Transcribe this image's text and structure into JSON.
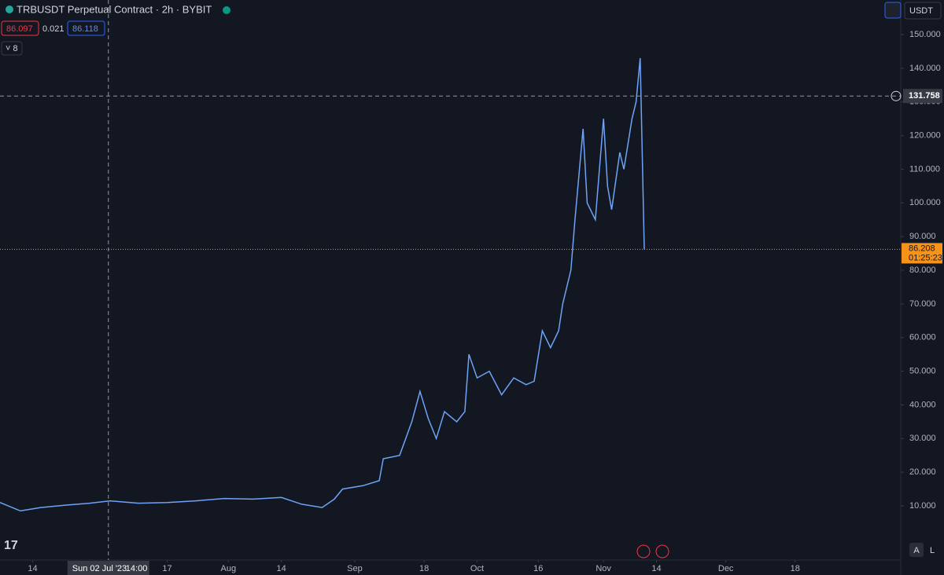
{
  "chart_data": {
    "type": "line",
    "title": "TRBUSDT Perpetual Contract · 2h · BYBIT",
    "ohlc": {
      "open": 86.097,
      "change": 0.021,
      "close": 86.118
    },
    "indicator_count": 8,
    "currency": "USDT",
    "logo": "17",
    "scale_buttons": [
      "A",
      "L"
    ],
    "x": [
      "2023-06-06",
      "2023-06-11",
      "2023-06-16",
      "2023-06-22",
      "2023-06-28",
      "2023-07-03",
      "2023-07-10",
      "2023-07-17",
      "2023-07-24",
      "2023-07-31",
      "2023-08-07",
      "2023-08-14",
      "2023-08-19",
      "2023-08-24",
      "2023-08-27",
      "2023-08-29",
      "2023-09-03",
      "2023-09-07",
      "2023-09-08",
      "2023-09-12",
      "2023-09-15",
      "2023-09-17",
      "2023-09-19",
      "2023-09-21",
      "2023-09-23",
      "2023-09-26",
      "2023-09-28",
      "2023-09-29",
      "2023-10-01",
      "2023-10-04",
      "2023-10-07",
      "2023-10-10",
      "2023-10-13",
      "2023-10-15",
      "2023-10-17",
      "2023-10-19",
      "2023-10-21",
      "2023-10-22",
      "2023-10-24",
      "2023-10-25",
      "2023-10-27",
      "2023-10-28",
      "2023-10-30",
      "2023-11-01",
      "2023-11-02",
      "2023-11-03",
      "2023-11-05",
      "2023-11-06",
      "2023-11-08",
      "2023-11-09",
      "2023-11-10",
      "2023-11-11"
    ],
    "series": [
      {
        "name": "TRBUSDT",
        "color": "#6ea3f7",
        "values": [
          11.0,
          8.5,
          9.5,
          10.2,
          10.8,
          11.5,
          10.8,
          11.0,
          11.5,
          12.2,
          12.0,
          12.5,
          10.5,
          9.5,
          12.0,
          15.0,
          16.0,
          17.5,
          24.0,
          25.0,
          35.0,
          44.0,
          36.0,
          30.0,
          38.0,
          35.0,
          38.0,
          55.0,
          48.0,
          50.0,
          43.0,
          48.0,
          46.0,
          47.0,
          62.0,
          57.0,
          62.0,
          70.0,
          80.0,
          95.0,
          122.0,
          100.0,
          95.0,
          125.0,
          105.0,
          98.0,
          115.0,
          110.0,
          125.0,
          130.0,
          143.0,
          86.208
        ]
      }
    ],
    "xlim": [
      "2023-06-06",
      "2024-01-10"
    ],
    "ylim": [
      -6.1,
      160.27
    ],
    "yticks": [
      {
        "value": 10,
        "label": "10.000"
      },
      {
        "value": 20,
        "label": "20.000"
      },
      {
        "value": 30,
        "label": "30.000"
      },
      {
        "value": 40,
        "label": "40.000"
      },
      {
        "value": 50,
        "label": "50.000"
      },
      {
        "value": 60,
        "label": "60.000"
      },
      {
        "value": 70,
        "label": "70.000"
      },
      {
        "value": 80,
        "label": "80.000"
      },
      {
        "value": 90,
        "label": "90.000"
      },
      {
        "value": 100,
        "label": "100.000"
      },
      {
        "value": 110,
        "label": "110.000"
      },
      {
        "value": 120,
        "label": "120.000"
      },
      {
        "value": 130,
        "label": "130.000"
      },
      {
        "value": 140,
        "label": "140.000"
      },
      {
        "value": 150,
        "label": "150.000"
      }
    ],
    "xticks": [
      {
        "value": "2023-06-14",
        "label": "14"
      },
      {
        "value": "2023-07-17",
        "label": "17"
      },
      {
        "value": "2023-08-01",
        "label": "Aug"
      },
      {
        "value": "2023-08-14",
        "label": "14"
      },
      {
        "value": "2023-09-01",
        "label": "Sep"
      },
      {
        "value": "2023-09-18",
        "label": "18"
      },
      {
        "value": "2023-10-01",
        "label": "Oct"
      },
      {
        "value": "2023-10-16",
        "label": "16"
      },
      {
        "value": "2023-11-01",
        "label": "Nov"
      },
      {
        "value": "2023-11-14",
        "label": "14"
      },
      {
        "value": "2023-12-01",
        "label": "Dec"
      },
      {
        "value": "2023-12-18",
        "label": "18"
      }
    ],
    "crosshair": {
      "x": "2023-07-02T14:00",
      "date_label": "Sun 02 Jul '23",
      "time_label": "14:00",
      "y": 131.758
    },
    "last_price": {
      "value": 86.208,
      "countdown": "01:25:23"
    }
  }
}
